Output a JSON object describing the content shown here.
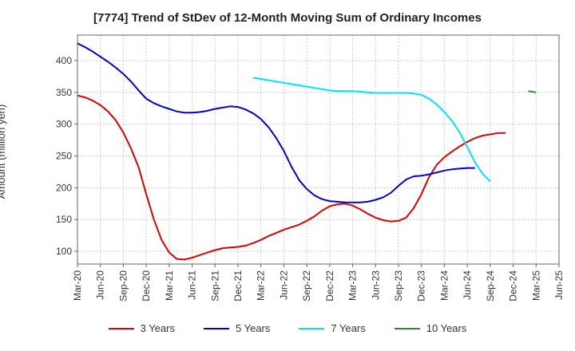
{
  "chart_data": {
    "type": "line",
    "title": "[7774]  Trend of StDev of 12-Month Moving Sum of Ordinary Incomes",
    "xlabel": "",
    "ylabel": "Amount (million yen)",
    "ylim": [
      80,
      440
    ],
    "yticks": [
      100,
      150,
      200,
      250,
      300,
      350,
      400
    ],
    "xticks": [
      "Mar-20",
      "Jun-20",
      "Sep-20",
      "Dec-20",
      "Mar-21",
      "Jun-21",
      "Sep-21",
      "Dec-21",
      "Mar-22",
      "Jun-22",
      "Sep-22",
      "Dec-22",
      "Mar-23",
      "Jun-23",
      "Sep-23",
      "Dec-23",
      "Mar-24",
      "Jun-24",
      "Sep-24",
      "Dec-24",
      "Mar-25",
      "Jun-25"
    ],
    "grid": true,
    "legend_position": "bottom",
    "series": [
      {
        "name": "3 Years",
        "color": "#dd0000",
        "start": "Mar-20",
        "values": [
          345,
          342,
          337,
          330,
          320,
          306,
          287,
          262,
          232,
          190,
          150,
          118,
          98,
          88,
          87,
          90,
          94,
          98,
          102,
          105,
          106,
          107,
          109,
          113,
          118,
          124,
          129,
          134,
          138,
          142,
          148,
          155,
          164,
          171,
          174,
          175,
          172,
          166,
          159,
          153,
          149,
          147,
          148,
          153,
          168,
          190,
          217,
          236,
          248,
          257,
          265,
          272,
          278,
          282,
          284,
          286,
          286
        ]
      },
      {
        "name": "5 Years",
        "color": "#0000cc",
        "start": "Mar-20",
        "values": [
          427,
          421,
          414,
          406,
          398,
          389,
          379,
          367,
          353,
          340,
          333,
          328,
          324,
          320,
          318,
          318,
          319,
          321,
          324,
          326,
          328,
          327,
          323,
          317,
          308,
          295,
          278,
          258,
          233,
          212,
          198,
          188,
          182,
          179,
          178,
          177,
          177,
          177,
          178,
          181,
          185,
          192,
          203,
          213,
          218,
          219,
          221,
          224,
          227,
          229,
          230,
          231,
          231
        ]
      },
      {
        "name": "7 Years",
        "color": "#00e5ee",
        "start": "Feb-22",
        "values": [
          373,
          371,
          369,
          367,
          365,
          363,
          361,
          359,
          357,
          355,
          353,
          352,
          352,
          352,
          351,
          350,
          349,
          349,
          349,
          349,
          349,
          348,
          346,
          340,
          331,
          319,
          305,
          287,
          264,
          240,
          222,
          210
        ]
      },
      {
        "name": "10 Years",
        "color": "#2e8b2e",
        "start": "Feb-25",
        "values": [
          352,
          350
        ]
      }
    ]
  }
}
